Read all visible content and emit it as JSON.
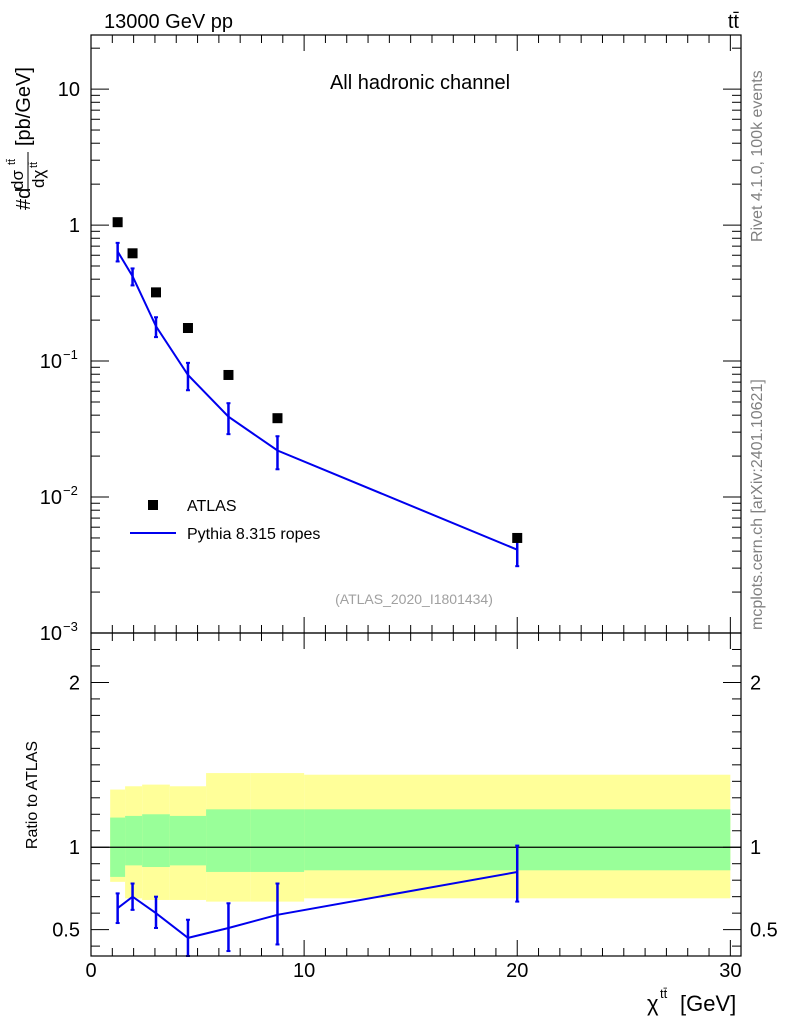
{
  "header": {
    "energy_label": "13000 GeV pp",
    "process_label": "tt̄",
    "channel_label": "All hadronic channel",
    "analysis_id": "(ATLAS_2020_I1801434)",
    "rivet_label": "Rivet 4.1.0,  100k events",
    "source_label": "mcplots.cern.ch [arXiv:2401.10621]"
  },
  "legend": {
    "data_label": "ATLAS",
    "mc_label": "Pythia 8.315 ropes"
  },
  "colors": {
    "data": "#000000",
    "mc": "#0000ee",
    "band_inner": "#99ff99",
    "band_outer": "#ffff99"
  },
  "chart_data": [
    {
      "type": "scatter",
      "title": "All hadronic channel",
      "xlabel": "χ^{tt̄} [GeV]",
      "ylabel": "#d dσ^{tt̄}/dχ^{tt̄} [pb/GeV]",
      "yscale": "log",
      "xlim": [
        0,
        30.5
      ],
      "ylim": [
        0.001,
        25
      ],
      "y_ticks": [
        {
          "value": 10,
          "label": "10"
        },
        {
          "value": 1,
          "label": "1"
        },
        {
          "value": 0.1,
          "label": "10",
          "sup": "−1"
        },
        {
          "value": 0.01,
          "label": "10",
          "sup": "−2"
        },
        {
          "value": 0.001,
          "label": "10",
          "sup": "−3"
        }
      ],
      "series": [
        {
          "name": "ATLAS",
          "x": [
            1.25,
            1.95,
            3.05,
            4.55,
            6.45,
            8.75,
            20.0
          ],
          "y": [
            1.05,
            0.62,
            0.32,
            0.175,
            0.079,
            0.038,
            0.005
          ]
        },
        {
          "name": "Pythia 8.315 ropes",
          "x": [
            1.25,
            1.95,
            3.05,
            4.55,
            6.45,
            8.75,
            20.0
          ],
          "y": [
            0.64,
            0.42,
            0.18,
            0.079,
            0.039,
            0.022,
            0.0041
          ],
          "yerr_low": [
            0.1,
            0.06,
            0.03,
            0.018,
            0.01,
            0.006,
            0.001
          ],
          "yerr_high": [
            0.1,
            0.06,
            0.03,
            0.018,
            0.01,
            0.006,
            0.001
          ]
        }
      ]
    },
    {
      "type": "line",
      "ylabel": "Ratio to ATLAS",
      "xlabel": "χ^{tt̄} [GeV]",
      "xlim": [
        0,
        30.5
      ],
      "ylim": [
        0.34,
        2.3
      ],
      "x_ticks": [
        0,
        10,
        20,
        30
      ],
      "y_ticks": [
        0.5,
        1,
        2
      ],
      "reference": 1.0,
      "bands": {
        "edges": [
          0.9,
          1.6,
          2.4,
          3.7,
          5.4,
          7.5,
          10.0,
          30.0
        ],
        "inner_lo": [
          0.82,
          0.89,
          0.88,
          0.89,
          0.85,
          0.85,
          0.86
        ],
        "inner_hi": [
          1.18,
          1.19,
          1.2,
          1.19,
          1.23,
          1.23,
          1.23
        ],
        "outer_lo": [
          0.79,
          0.69,
          0.68,
          0.68,
          0.67,
          0.67,
          0.69
        ],
        "outer_hi": [
          1.35,
          1.37,
          1.38,
          1.37,
          1.45,
          1.45,
          1.44
        ]
      },
      "series": [
        {
          "name": "Pythia 8.315 ropes / ATLAS",
          "x": [
            1.25,
            1.95,
            3.05,
            4.55,
            6.45,
            8.75,
            20.0
          ],
          "y": [
            0.63,
            0.7,
            0.6,
            0.45,
            0.51,
            0.59,
            0.85
          ],
          "yerr_low": [
            0.09,
            0.08,
            0.09,
            0.11,
            0.14,
            0.18,
            0.18
          ],
          "yerr_high": [
            0.09,
            0.08,
            0.1,
            0.11,
            0.15,
            0.19,
            0.16
          ]
        }
      ]
    }
  ]
}
